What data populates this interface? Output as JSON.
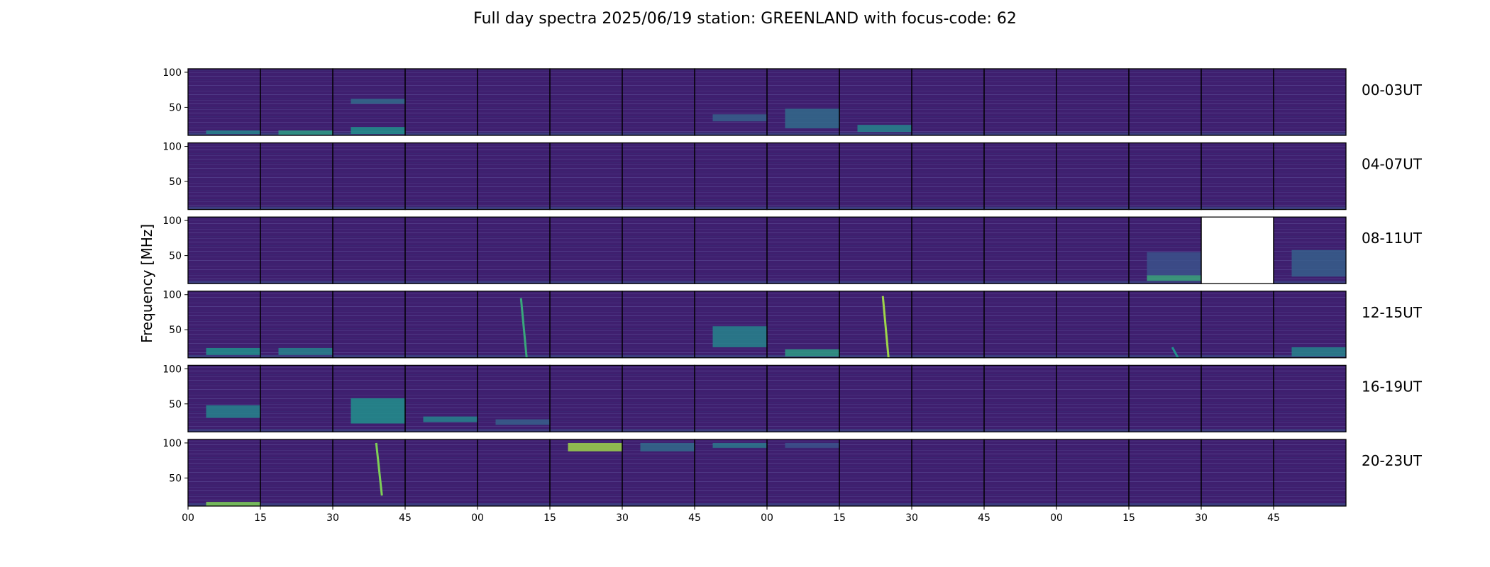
{
  "chart_data": {
    "type": "heatmap",
    "title": "Full day spectra 2025/06/19 station: GREENLAND with focus-code: 62",
    "ylabel": "Frequency [MHz]",
    "xlabel": "",
    "y_ticks": [
      "100",
      "50"
    ],
    "ylim": [
      10,
      105
    ],
    "x_ticks": [
      "00",
      "15",
      "30",
      "45",
      "00",
      "15",
      "30",
      "45",
      "00",
      "15",
      "30",
      "45",
      "00",
      "15",
      "30",
      "45"
    ],
    "colormap": "viridis",
    "grid": false,
    "panels_per_row": 16,
    "panel_minutes": 15,
    "rows": [
      {
        "label": "00-03UT",
        "missing_panels": []
      },
      {
        "label": "04-07UT",
        "missing_panels": []
      },
      {
        "label": "08-11UT",
        "missing_panels": [
          14
        ]
      },
      {
        "label": "12-15UT",
        "missing_panels": []
      },
      {
        "label": "16-19UT",
        "missing_panels": []
      },
      {
        "label": "20-23UT",
        "missing_panels": []
      }
    ],
    "features": [
      {
        "row": 0,
        "panel": 0,
        "kind": "band",
        "f_lo": 12,
        "f_hi": 17,
        "intensity": 0.45
      },
      {
        "row": 0,
        "panel": 1,
        "kind": "band",
        "f_lo": 11,
        "f_hi": 17,
        "intensity": 0.55
      },
      {
        "row": 0,
        "panel": 2,
        "kind": "band",
        "f_lo": 12,
        "f_hi": 22,
        "intensity": 0.5
      },
      {
        "row": 0,
        "panel": 2,
        "kind": "band",
        "f_lo": 55,
        "f_hi": 62,
        "intensity": 0.35
      },
      {
        "row": 0,
        "panel": 7,
        "kind": "band",
        "f_lo": 30,
        "f_hi": 40,
        "intensity": 0.3
      },
      {
        "row": 0,
        "panel": 8,
        "kind": "band",
        "f_lo": 20,
        "f_hi": 48,
        "intensity": 0.35
      },
      {
        "row": 0,
        "panel": 9,
        "kind": "band",
        "f_lo": 15,
        "f_hi": 25,
        "intensity": 0.45
      },
      {
        "row": 2,
        "panel": 13,
        "kind": "band",
        "f_lo": 14,
        "f_hi": 22,
        "intensity": 0.6
      },
      {
        "row": 2,
        "panel": 13,
        "kind": "band",
        "f_lo": 22,
        "f_hi": 55,
        "intensity": 0.25
      },
      {
        "row": 2,
        "panel": 15,
        "kind": "band",
        "f_lo": 20,
        "f_hi": 58,
        "intensity": 0.3
      },
      {
        "row": 3,
        "panel": 0,
        "kind": "band",
        "f_lo": 14,
        "f_hi": 24,
        "intensity": 0.5
      },
      {
        "row": 3,
        "panel": 1,
        "kind": "band",
        "f_lo": 14,
        "f_hi": 24,
        "intensity": 0.45
      },
      {
        "row": 3,
        "panel": 4,
        "kind": "burst",
        "f_lo": 10,
        "f_hi": 95,
        "intensity": 0.6
      },
      {
        "row": 3,
        "panel": 7,
        "kind": "band",
        "f_lo": 25,
        "f_hi": 55,
        "intensity": 0.45
      },
      {
        "row": 3,
        "panel": 8,
        "kind": "band",
        "f_lo": 12,
        "f_hi": 22,
        "intensity": 0.55
      },
      {
        "row": 3,
        "panel": 9,
        "kind": "burst",
        "f_lo": 10,
        "f_hi": 98,
        "intensity": 0.85
      },
      {
        "row": 3,
        "panel": 13,
        "kind": "burst",
        "f_lo": 10,
        "f_hi": 25,
        "intensity": 0.5
      },
      {
        "row": 3,
        "panel": 15,
        "kind": "band",
        "f_lo": 12,
        "f_hi": 25,
        "intensity": 0.45
      },
      {
        "row": 4,
        "panel": 0,
        "kind": "band",
        "f_lo": 30,
        "f_hi": 48,
        "intensity": 0.45
      },
      {
        "row": 4,
        "panel": 2,
        "kind": "band",
        "f_lo": 22,
        "f_hi": 58,
        "intensity": 0.5
      },
      {
        "row": 4,
        "panel": 3,
        "kind": "band",
        "f_lo": 24,
        "f_hi": 32,
        "intensity": 0.45
      },
      {
        "row": 4,
        "panel": 4,
        "kind": "band",
        "f_lo": 20,
        "f_hi": 28,
        "intensity": 0.3
      },
      {
        "row": 5,
        "panel": 0,
        "kind": "band",
        "f_lo": 10,
        "f_hi": 16,
        "intensity": 0.8
      },
      {
        "row": 5,
        "panel": 2,
        "kind": "burst",
        "f_lo": 25,
        "f_hi": 100,
        "intensity": 0.8
      },
      {
        "row": 5,
        "panel": 5,
        "kind": "band",
        "f_lo": 88,
        "f_hi": 100,
        "intensity": 0.85
      },
      {
        "row": 5,
        "panel": 6,
        "kind": "band",
        "f_lo": 88,
        "f_hi": 100,
        "intensity": 0.35
      },
      {
        "row": 5,
        "panel": 7,
        "kind": "band",
        "f_lo": 93,
        "f_hi": 100,
        "intensity": 0.4
      },
      {
        "row": 5,
        "panel": 8,
        "kind": "band",
        "f_lo": 93,
        "f_hi": 100,
        "intensity": 0.25
      }
    ]
  }
}
